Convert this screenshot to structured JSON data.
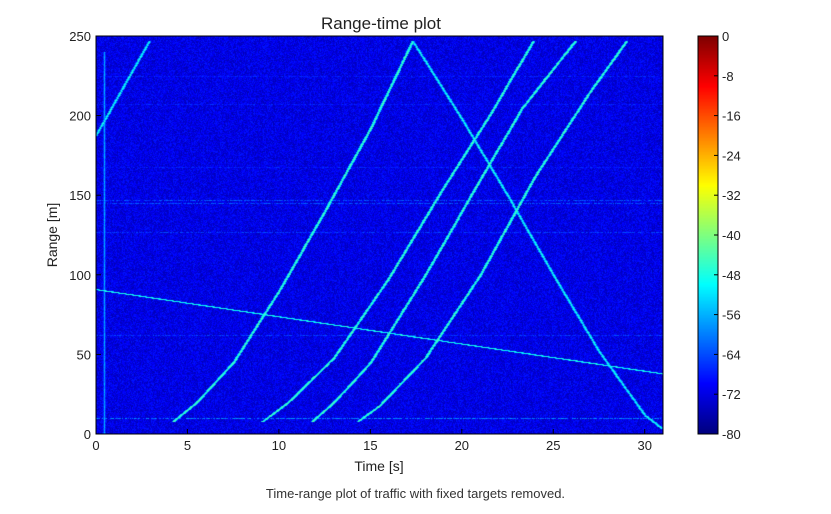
{
  "chart_data": {
    "type": "heatmap",
    "title": "Range-time plot",
    "xlabel": "Time [s]",
    "ylabel": "Range [m]",
    "xlim": [
      0,
      31
    ],
    "ylim": [
      0,
      250
    ],
    "xticks": [
      "0",
      "5",
      "10",
      "15",
      "20",
      "25",
      "30"
    ],
    "yticks": [
      "0",
      "50",
      "100",
      "150",
      "200",
      "250"
    ],
    "colormap": "jet",
    "colorbar": {
      "range": [
        -80,
        0
      ],
      "ticks": [
        "0",
        "-8",
        "-16",
        "-24",
        "-32",
        "-40",
        "-48",
        "-56",
        "-64",
        "-72",
        "-80"
      ]
    },
    "background_level": -72,
    "tracks": [
      {
        "x": [
          0,
          2.9
        ],
        "y": [
          188,
          247
        ],
        "level": -50
      },
      {
        "x": [
          4.2,
          5.5,
          7.5,
          10,
          12.5,
          15,
          17.3
        ],
        "y": [
          8,
          20,
          45,
          90,
          140,
          192,
          247
        ],
        "level": -46
      },
      {
        "x": [
          17.3,
          20,
          22.5,
          25,
          27.5,
          30,
          30.9
        ],
        "y": [
          247,
          198,
          150,
          100,
          52,
          12,
          4
        ],
        "level": -50
      },
      {
        "x": [
          9.1,
          10.5,
          13,
          16,
          19,
          21.5,
          23.9
        ],
        "y": [
          8,
          20,
          48,
          98,
          155,
          200,
          247
        ],
        "level": -46
      },
      {
        "x": [
          11.8,
          13,
          15,
          18,
          21,
          23.3,
          26.2
        ],
        "y": [
          8,
          20,
          45,
          100,
          160,
          205,
          247
        ],
        "level": -46
      },
      {
        "x": [
          14.3,
          15.5,
          18,
          21,
          24,
          27,
          29
        ],
        "y": [
          8,
          18,
          48,
          100,
          162,
          215,
          247
        ],
        "level": -46
      },
      {
        "x": [
          0,
          31
        ],
        "y": [
          91,
          38
        ],
        "level": -50
      },
      {
        "x": [
          0.45,
          0.45
        ],
        "y": [
          0,
          240
        ],
        "level": -58
      }
    ],
    "range_stripes": [
      {
        "y": 10,
        "level": -60
      },
      {
        "y": 145,
        "level": -64
      },
      {
        "y": 147,
        "level": -64
      },
      {
        "y": 127,
        "level": -66
      },
      {
        "y": 168,
        "level": -68
      },
      {
        "y": 207,
        "level": -68
      },
      {
        "y": 225,
        "level": -68
      },
      {
        "y": 62,
        "level": -66
      }
    ]
  },
  "caption": "Time-range plot of traffic with fixed targets removed."
}
